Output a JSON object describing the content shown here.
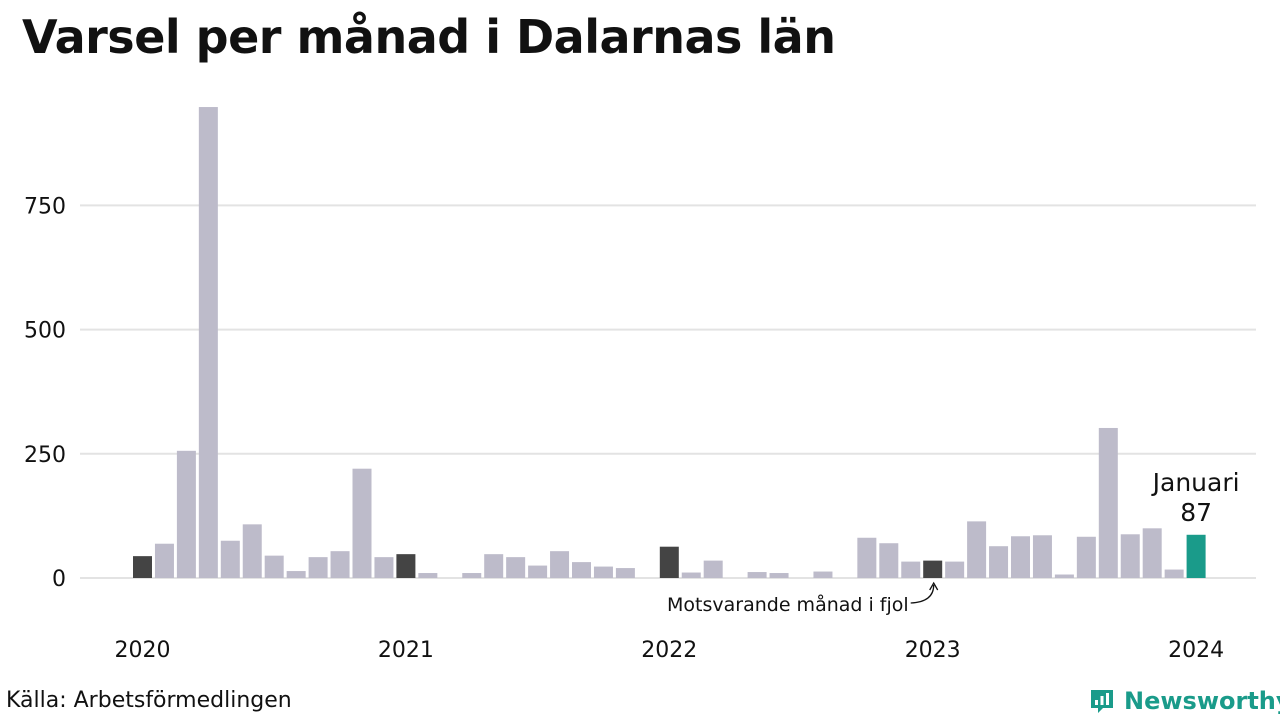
{
  "title": "Varsel per månad i Dalarnas län",
  "source": "Källa: Arbetsförmedlingen",
  "brand": {
    "name": "Newsworthy",
    "icon": "newsworthy-logo-icon"
  },
  "colors": {
    "bar": "#bdbbca",
    "highlight": "#444444",
    "current": "#1a9b8a",
    "grid": "#e3e3e3"
  },
  "chart_data": {
    "type": "bar",
    "title": "Varsel per månad i Dalarnas län",
    "xlabel": "",
    "ylabel": "",
    "ylim": [
      0,
      950
    ],
    "yticks": [
      0,
      250,
      500,
      750
    ],
    "ytick_labels": [
      "0",
      "250",
      "500",
      "750"
    ],
    "xtick_labels": [
      {
        "label": "2020",
        "index": 0
      },
      {
        "label": "2021",
        "index": 12
      },
      {
        "label": "2022",
        "index": 24
      },
      {
        "label": "2023",
        "index": 36
      },
      {
        "label": "2024",
        "index": 48
      }
    ],
    "grid": true,
    "values": [
      44,
      69,
      256,
      948,
      75,
      108,
      45,
      14,
      42,
      54,
      220,
      42,
      48,
      10,
      0,
      10,
      48,
      42,
      25,
      54,
      32,
      23,
      20,
      0,
      63,
      11,
      35,
      0,
      12,
      10,
      0,
      13,
      0,
      81,
      70,
      33,
      35,
      33,
      114,
      64,
      84,
      86,
      7,
      83,
      302,
      88,
      100,
      17,
      87
    ],
    "highlight_indices": [
      0,
      12,
      24,
      36
    ],
    "current_index": 48,
    "annotations": {
      "current_label": "Januari",
      "current_value": "87",
      "previous_year": "Motsvarande månad i fjol"
    }
  }
}
